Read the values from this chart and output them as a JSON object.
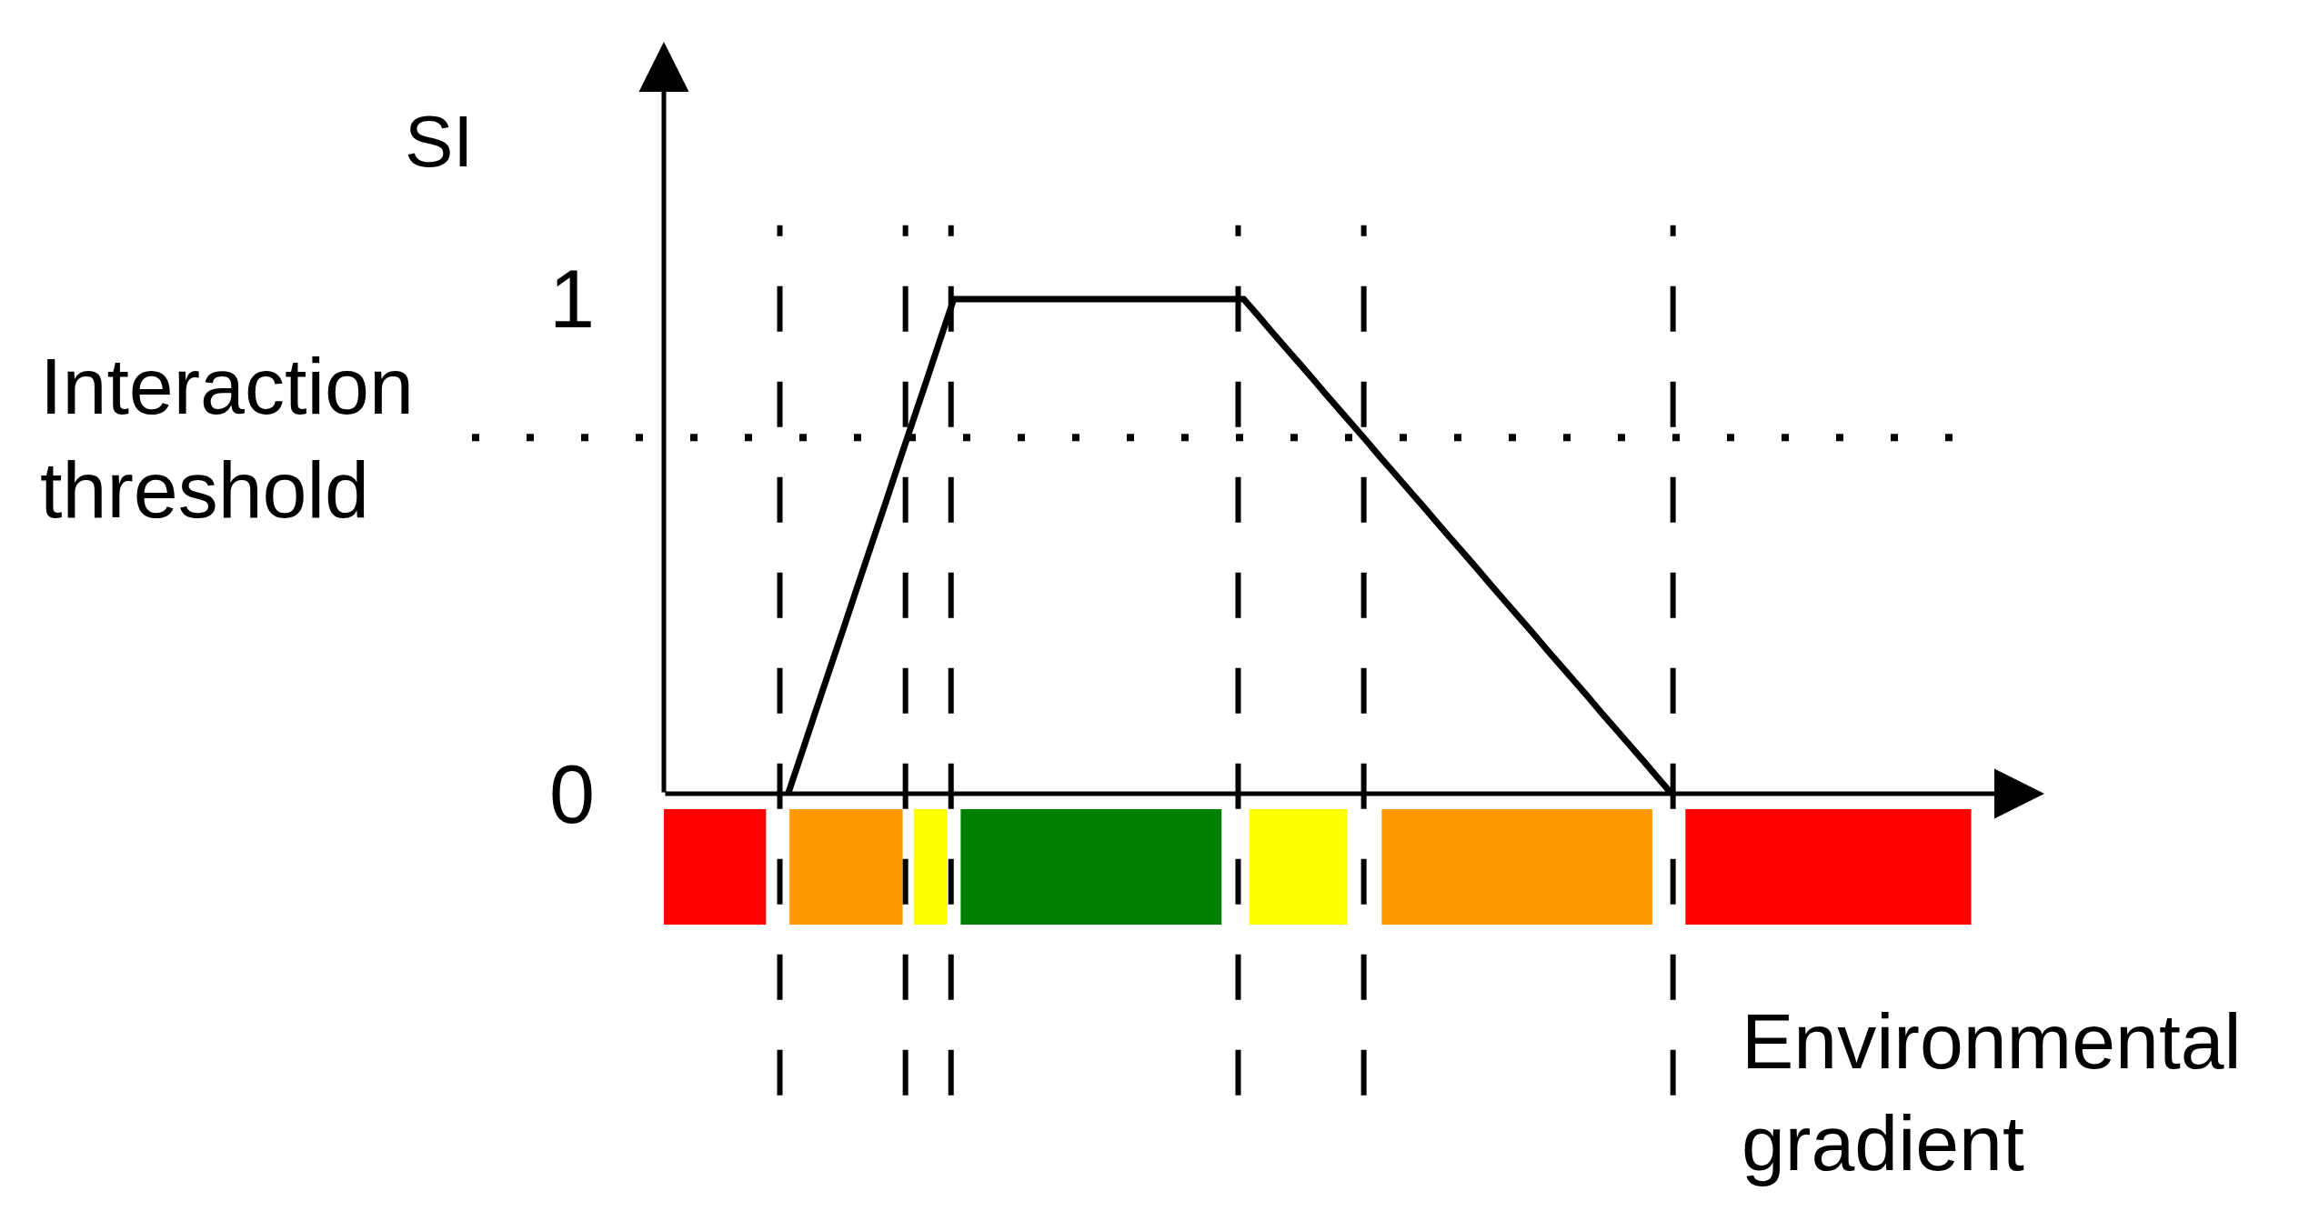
{
  "chart_data": {
    "type": "line",
    "xlabel": "Environmental gradient",
    "ylabel": "SI",
    "categories": [
      null,
      null,
      null,
      null,
      null,
      null,
      null,
      null,
      null,
      null,
      null,
      null,
      null,
      null,
      null,
      null,
      null,
      null,
      null,
      null,
      null,
      null,
      null,
      null,
      null,
      null,
      null,
      null,
      null,
      null,
      null,
      null,
      null,
      null,
      null,
      null,
      null,
      null,
      null,
      null,
      null,
      null,
      null,
      null,
      null,
      null,
      null,
      null,
      null,
      null,
      null,
      null,
      null,
      null,
      null,
      null,
      null,
      null,
      null,
      null,
      null,
      null,
      null,
      null,
      null,
      null,
      null,
      null,
      null,
      null,
      null,
      null,
      null,
      null,
      null,
      null,
      null,
      null,
      null,
      null,
      null,
      null,
      null,
      null,
      null,
      null,
      null,
      null,
      null,
      null,
      null,
      null,
      null,
      null,
      null,
      null,
      null,
      null,
      null,
      null,
      null
    ],
    "values": [
      null,
      null,
      null,
      null,
      null,
      null,
      null,
      null,
      null,
      0,
      0.083,
      0.167,
      0.25,
      0.333,
      0.417,
      0.5,
      0.583,
      0.667,
      0.75,
      0.833,
      0.917,
      1,
      1,
      1,
      1,
      1,
      1,
      1,
      1,
      1,
      1,
      1,
      1,
      1,
      1,
      1,
      1,
      1,
      1,
      1,
      1,
      1,
      1,
      0.968,
      0.935,
      0.903,
      0.871,
      0.839,
      0.806,
      0.774,
      0.742,
      0.71,
      0.677,
      0.645,
      0.613,
      0.581,
      0.548,
      0.516,
      0.484,
      0.452,
      0.419,
      0.387,
      0.355,
      0.323,
      0.29,
      0.258,
      0.226,
      0.194,
      0.161,
      0.129,
      0.097,
      0.065,
      0.032,
      0,
      null,
      null,
      null,
      null,
      null,
      null,
      null,
      null,
      null,
      null,
      null,
      null,
      null,
      null,
      null,
      null,
      null,
      null,
      null,
      null,
      null,
      null,
      null,
      null,
      null,
      null,
      null
    ],
    "color": "#000000",
    "ylim": [
      0,
      1.52
    ],
    "yticks": [
      0,
      1
    ],
    "tick_labels": "y",
    "ref_lines": [
      {
        "axis": "y",
        "value": 0.72,
        "label": "Interaction threshold",
        "line_style": "dotted",
        "color": "#000000"
      }
    ]
  }
}
